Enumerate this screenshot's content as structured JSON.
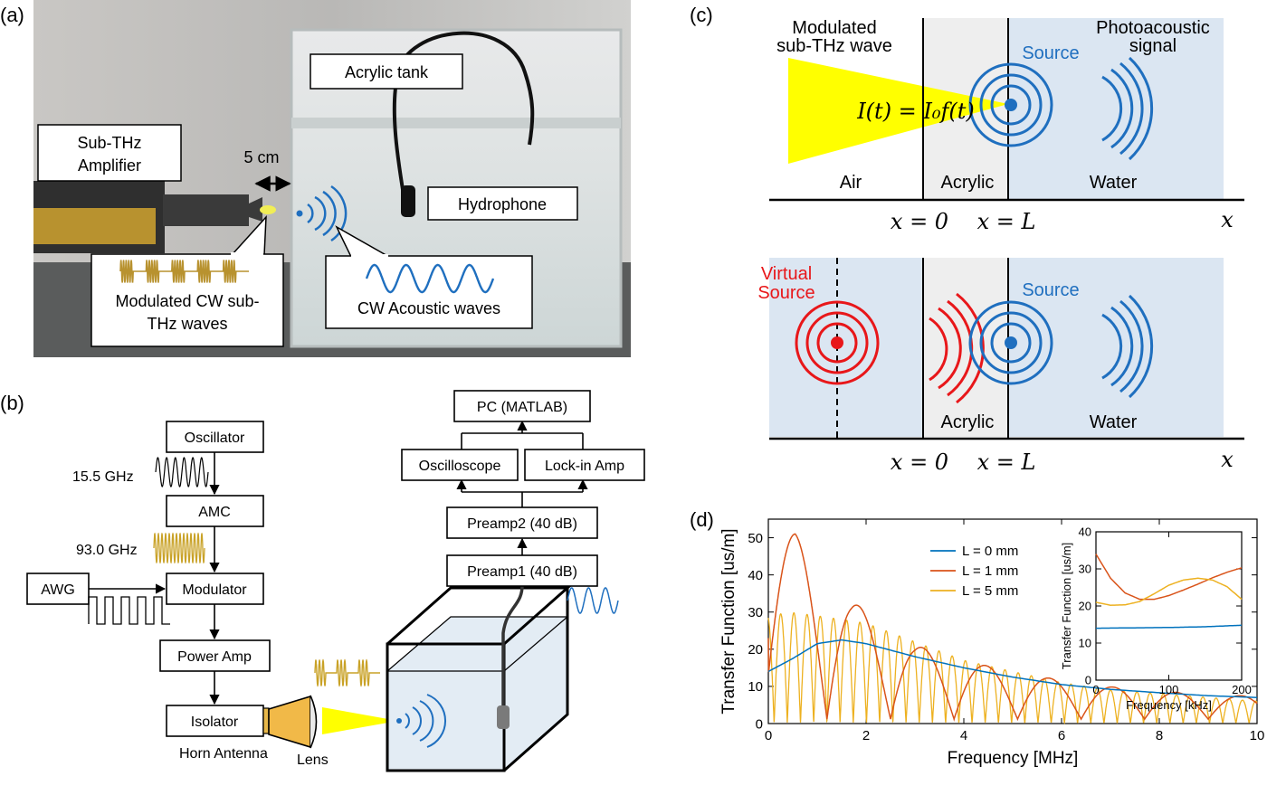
{
  "panel_labels": {
    "a": "(a)",
    "b": "(b)",
    "c": "(c)",
    "d": "(d)"
  },
  "panel_a": {
    "acrylic_tank": "Acrylic tank",
    "amplifier_line1": "Sub-THz",
    "amplifier_line2": "Amplifier",
    "distance": "5 cm",
    "hydrophone": "Hydrophone",
    "modulated_line1": "Modulated CW sub-",
    "modulated_line2": "THz waves",
    "acoustic": "CW Acoustic waves"
  },
  "panel_b": {
    "oscillator": "Oscillator",
    "freq1": "15.5 GHz",
    "amc": "AMC",
    "freq2": "93.0 GHz",
    "awg": "AWG",
    "modulator": "Modulator",
    "power_amp": "Power Amp",
    "isolator": "Isolator",
    "horn_antenna": "Horn Antenna",
    "lens": "Lens",
    "pc": "PC (MATLAB)",
    "oscilloscope": "Oscilloscope",
    "lockin": "Lock-in Amp",
    "preamp2": "Preamp2 (40 dB)",
    "preamp1": "Preamp1 (40 dB)"
  },
  "panel_c": {
    "modulated_line1": "Modulated",
    "modulated_line2": "sub-THz wave",
    "intensity_eq": "I(t) = I₀f(t)",
    "source": "Source",
    "photo_line1": "Photoacoustic",
    "photo_line2": "signal",
    "air": "Air",
    "acrylic": "Acrylic",
    "water": "Water",
    "x0": "x = 0",
    "xL": "x = L",
    "x_axis": "x",
    "virtual_line1": "Virtual",
    "virtual_line2": "Source",
    "source2": "Source",
    "acrylic2": "Acrylic",
    "water2": "Water",
    "x0_2": "x = 0",
    "xL_2": "x = L",
    "x_axis2": "x"
  },
  "chart_data": [
    {
      "type": "line",
      "xlabel": "Frequency [MHz]",
      "ylabel": "Transfer Function [us/m]",
      "xlim": [
        0,
        10
      ],
      "ylim": [
        0,
        55
      ],
      "xticks": [
        0,
        2,
        4,
        6,
        8,
        10
      ],
      "yticks": [
        0,
        10,
        20,
        30,
        40,
        50
      ],
      "legend_position": "upper-middle",
      "series": [
        {
          "name": "L = 0 mm",
          "color": "#0072BD",
          "x": [
            0,
            0.5,
            1.0,
            1.5,
            2,
            3,
            4,
            5,
            6,
            7,
            8,
            9,
            10
          ],
          "y": [
            14,
            17.5,
            21.5,
            22.5,
            21.5,
            18,
            15,
            12.5,
            10.5,
            9.2,
            8.3,
            7.5,
            7
          ]
        },
        {
          "name": "L = 1 mm",
          "color": "#D95319",
          "peak_x": [
            0.55,
            1.7,
            3.0,
            4.3,
            5.6,
            6.9,
            8.2,
            9.5
          ],
          "peak_y": [
            51,
            33,
            21,
            16,
            12.5,
            10,
            8.5,
            7.5
          ]
        },
        {
          "name": "L = 5 mm",
          "color": "#EDB120",
          "peak_x": [
            0.1,
            0.4,
            1.0,
            2.0,
            3.0,
            4.0,
            5.0,
            6.0,
            7.0,
            8.0,
            9.0,
            10.0
          ],
          "peak_y": [
            29,
            30,
            29,
            27,
            22,
            17,
            14,
            11,
            9,
            8,
            7,
            6
          ]
        }
      ]
    },
    {
      "type": "line",
      "role": "inset",
      "xlabel": "Frequency [kHz]",
      "ylabel": "Transfer Function [us/m]",
      "xlim": [
        0,
        200
      ],
      "ylim": [
        0,
        40
      ],
      "xticks": [
        0,
        100,
        200
      ],
      "yticks": [
        0,
        10,
        20,
        30,
        40
      ],
      "series": [
        {
          "name": "L = 0 mm",
          "color": "#0072BD",
          "x": [
            0,
            50,
            100,
            150,
            200
          ],
          "y": [
            14,
            14.1,
            14.2,
            14.4,
            14.8
          ]
        },
        {
          "name": "L = 1 mm",
          "color": "#D95319",
          "x": [
            0,
            20,
            40,
            60,
            80,
            100,
            120,
            140,
            160,
            180,
            200
          ],
          "y": [
            34,
            27.5,
            23.5,
            21.8,
            21.8,
            22.8,
            24.3,
            25.9,
            27.6,
            29.1,
            30.3
          ]
        },
        {
          "name": "L = 5 mm",
          "color": "#EDB120",
          "x": [
            0,
            20,
            40,
            60,
            80,
            100,
            120,
            140,
            160,
            180,
            200
          ],
          "y": [
            21,
            20.2,
            20.3,
            21.2,
            23.3,
            25.6,
            27.0,
            27.5,
            27.0,
            25.2,
            21.8
          ]
        }
      ]
    }
  ]
}
